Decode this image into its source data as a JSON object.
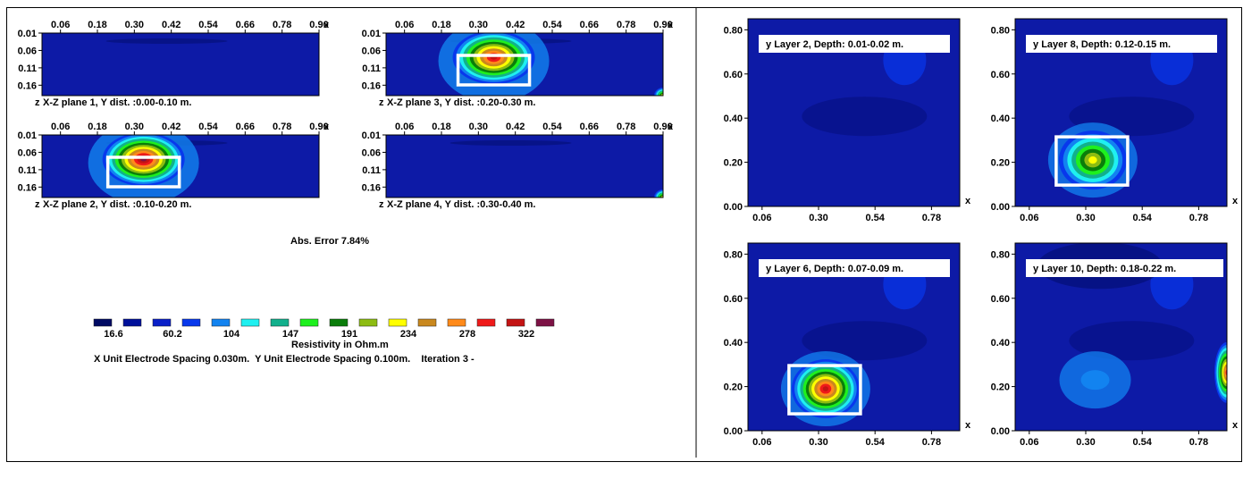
{
  "colors": {
    "background": "#0d1aa6",
    "scale": [
      "#000a63",
      "#00109a",
      "#0a20c8",
      "#0838ec",
      "#1283f0",
      "#1ff0f0",
      "#12b08c",
      "#1ef01e",
      "#0a7d0a",
      "#8dbc12",
      "#ffff00",
      "#c9881e",
      "#ff8a1a",
      "#ef1a1a",
      "#c41414",
      "#7d1245",
      "#5e1070"
    ],
    "box": "#ffffff"
  },
  "icons": {
    "box": "rectangle-outline"
  },
  "strips": {
    "x_ticks": [
      "0.06",
      "0.18",
      "0.30",
      "0.42",
      "0.54",
      "0.66",
      "0.78",
      "0.90"
    ],
    "x_axis": "x",
    "z_ticks": [
      "0.01",
      "0.06",
      "0.11",
      "0.16"
    ],
    "z_axis": "z",
    "planes": [
      {
        "caption": "X-Z plane 1, Y dist. :0.00-0.10 m.",
        "anomaly": {
          "x": 0,
          "z": 0,
          "peak": 0
        },
        "box": false
      },
      {
        "caption": "X-Z plane 3, Y dist. :0.20-0.30 m.",
        "anomaly": {
          "x": 0.35,
          "z": 0.08,
          "peak": 14
        },
        "box": true
      },
      {
        "caption": "X-Z plane 2, Y dist. :0.10-0.20 m.",
        "anomaly": {
          "x": 0.33,
          "z": 0.08,
          "peak": 15
        },
        "box": true
      },
      {
        "caption": "X-Z plane 4, Y dist. :0.30-0.40 m.",
        "anomaly": {
          "x": 0,
          "z": 0,
          "peak": 0
        },
        "box": false
      }
    ]
  },
  "abs_error": "Abs. Error 7.84%",
  "legend": {
    "values": [
      "16.6",
      "60.2",
      "104",
      "147",
      "191",
      "234",
      "278",
      "322"
    ],
    "title": "Resistivity in Ohm.m",
    "info": "X Unit Electrode Spacing 0.030m.  Y Unit Electrode Spacing 0.100m.    Iteration 3 -"
  },
  "maps": {
    "x_ticks": [
      "0.06",
      "0.30",
      "0.54",
      "0.78"
    ],
    "y_ticks": [
      "0.00",
      "0.20",
      "0.40",
      "0.60",
      "0.80"
    ],
    "x_axis": "x",
    "y_axis": "y",
    "layers": [
      {
        "title": "Layer 2, Depth: 0.01-0.02 m.",
        "anomaly": {
          "x": 0,
          "y": 0,
          "peak": 0
        },
        "box": false
      },
      {
        "title": "Layer 8, Depth: 0.12-0.15 m.",
        "anomaly": {
          "x": 0.33,
          "y": 0.21,
          "peak": 10
        },
        "box": true
      },
      {
        "title": "Layer 6, Depth: 0.07-0.09 m.",
        "anomaly": {
          "x": 0.33,
          "y": 0.19,
          "peak": 14
        },
        "box": true
      },
      {
        "title": "Layer 10, Depth: 0.18-0.22 m.",
        "anomaly": {
          "x": 0.34,
          "y": 0.23,
          "peak": 4
        },
        "box": false
      }
    ]
  },
  "chart_data": {
    "type": "heatmap",
    "title": "",
    "xlabel": "x",
    "ylabel": "y",
    "colorbar": {
      "label": "Resistivity in Ohm.m",
      "ticks": [
        16.6,
        60.2,
        104,
        147,
        191,
        234,
        278,
        322
      ]
    },
    "panels": [
      {
        "name": "X-Z plane 1, Y dist. :0.00-0.10 m.",
        "xlim": [
          0.0,
          0.9
        ],
        "zlim": [
          0.01,
          0.19
        ]
      },
      {
        "name": "X-Z plane 2, Y dist. :0.10-0.20 m.",
        "xlim": [
          0.0,
          0.9
        ],
        "zlim": [
          0.01,
          0.19
        ]
      },
      {
        "name": "X-Z plane 3, Y dist. :0.20-0.30 m.",
        "xlim": [
          0.0,
          0.9
        ],
        "zlim": [
          0.01,
          0.19
        ]
      },
      {
        "name": "X-Z plane 4, Y dist. :0.30-0.40 m.",
        "xlim": [
          0.0,
          0.9
        ],
        "zlim": [
          0.01,
          0.19
        ]
      },
      {
        "name": "Layer 2, Depth: 0.01-0.02 m.",
        "xlim": [
          0.0,
          0.9
        ],
        "ylim": [
          0.0,
          0.85
        ]
      },
      {
        "name": "Layer 6, Depth: 0.07-0.09 m.",
        "xlim": [
          0.0,
          0.9
        ],
        "ylim": [
          0.0,
          0.85
        ]
      },
      {
        "name": "Layer 8, Depth: 0.12-0.15 m.",
        "xlim": [
          0.0,
          0.9
        ],
        "ylim": [
          0.0,
          0.85
        ]
      },
      {
        "name": "Layer 10, Depth: 0.18-0.22 m.",
        "xlim": [
          0.0,
          0.9
        ],
        "ylim": [
          0.0,
          0.85
        ]
      }
    ]
  }
}
